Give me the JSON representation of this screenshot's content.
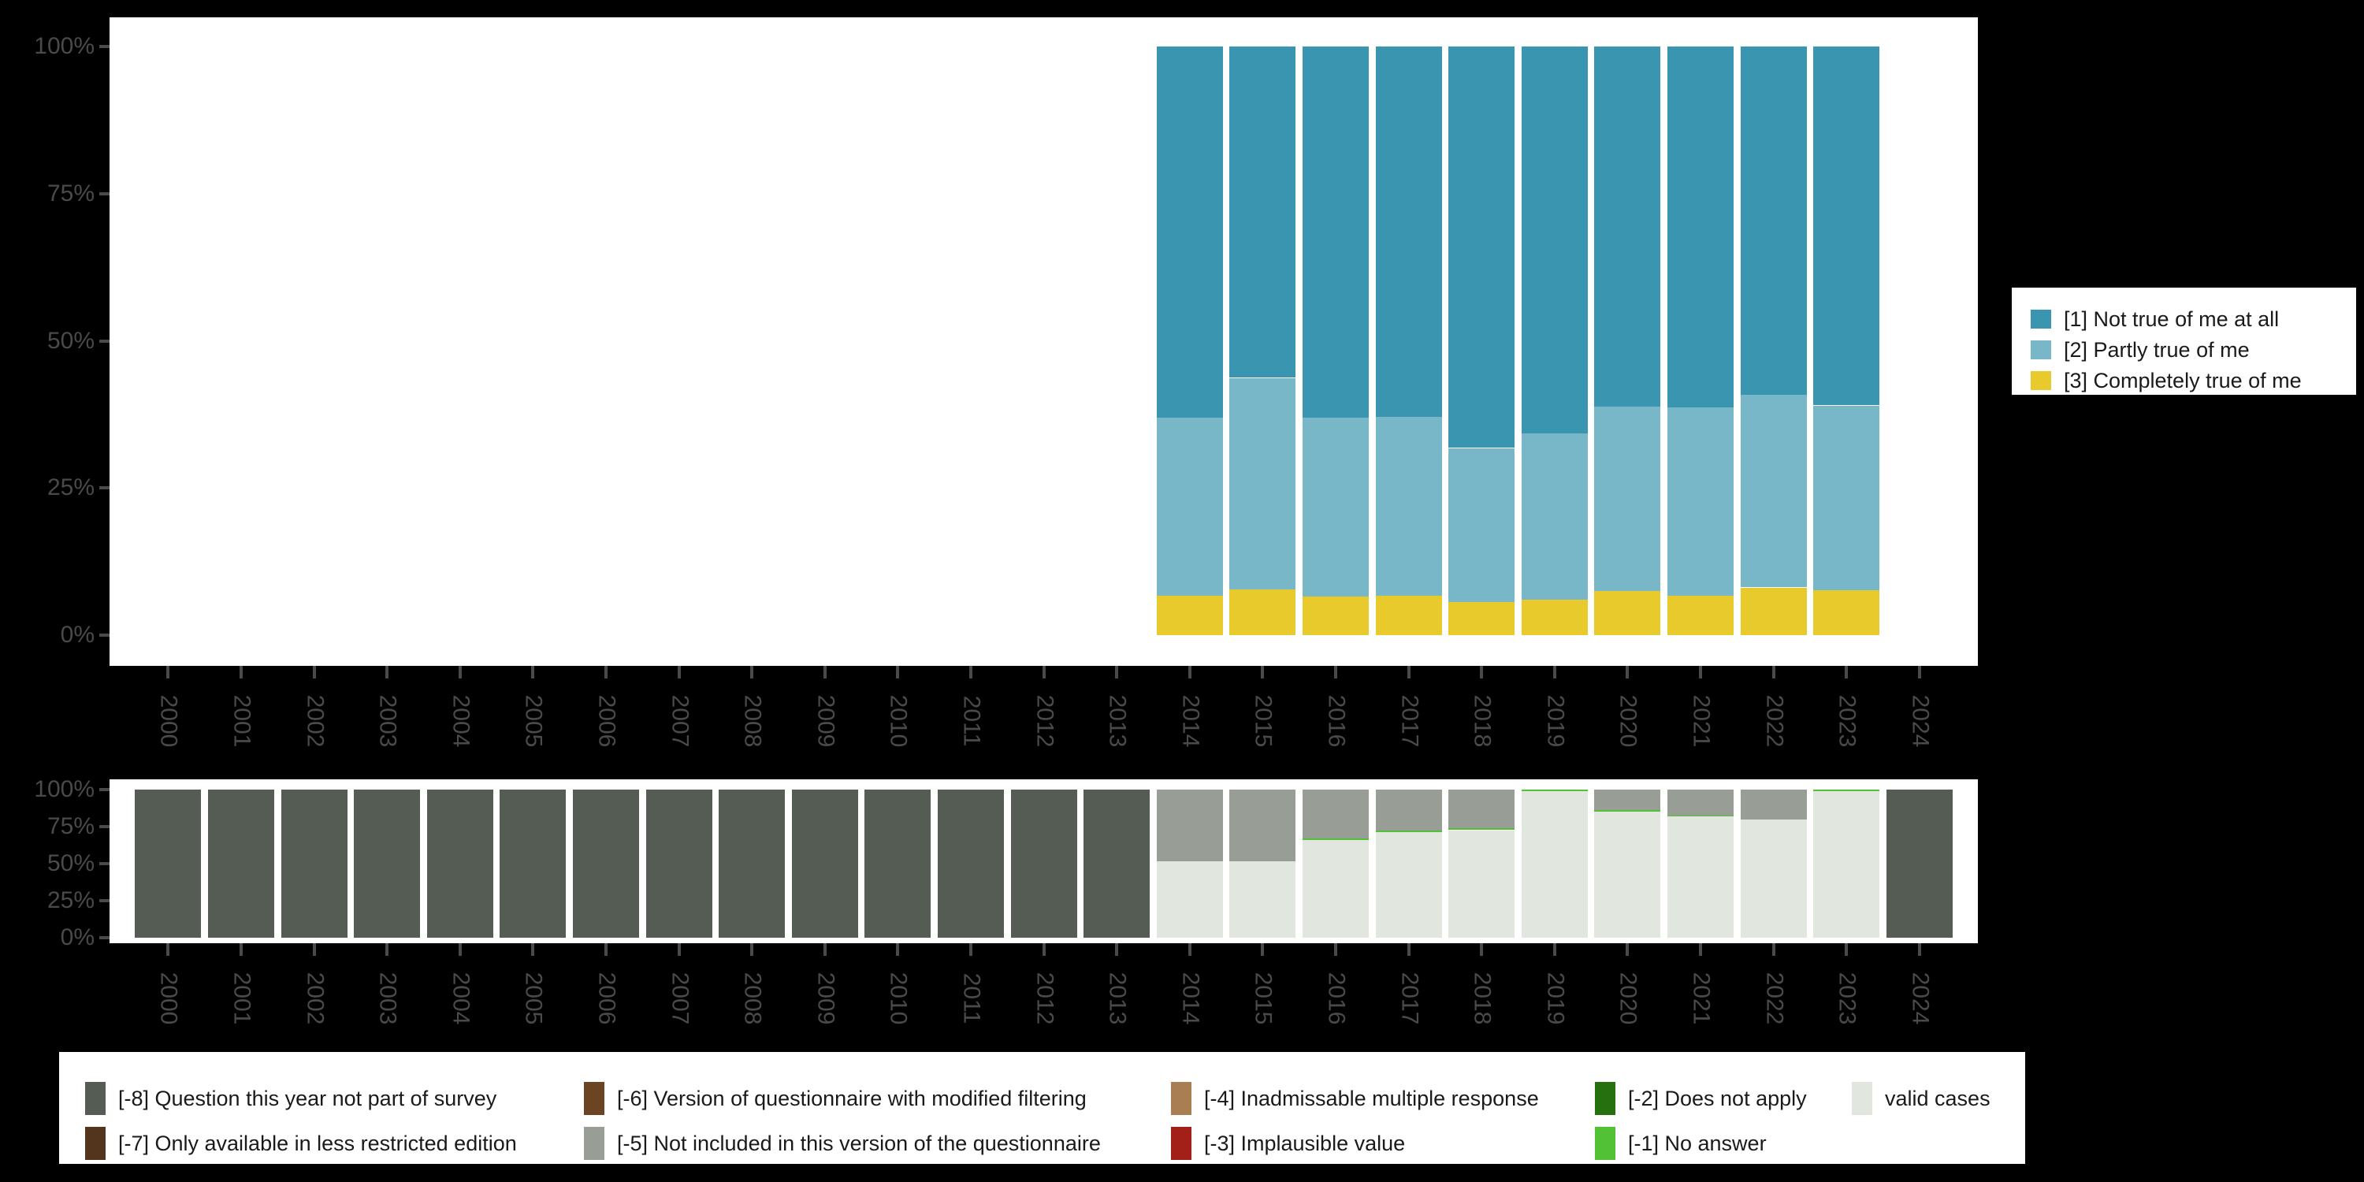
{
  "palette": {
    "background": "#000000",
    "panel": "#ffffff",
    "axis_text": "#4a4a4a",
    "legend_text": "#1a1a1a",
    "not_true": "#3a96b0",
    "partly_true": "#78b7c8",
    "completely_true": "#e9ca2c",
    "m8": "#545c53",
    "m7": "#53341d",
    "m6": "#6b4423",
    "m5": "#989e96",
    "m4": "#a87e52",
    "m3": "#a32019",
    "m2": "#26700f",
    "m1": "#53c135",
    "valid": "#e1e6df"
  },
  "axes": {
    "y_tick_labels": [
      "100%",
      "75%",
      "50%",
      "25%",
      "0%"
    ],
    "x_tick_labels": [
      "2000",
      "2001",
      "2002",
      "2003",
      "2004",
      "2005",
      "2006",
      "2007",
      "2008",
      "2009",
      "2010",
      "2011",
      "2012",
      "2013",
      "2014",
      "2015",
      "2016",
      "2017",
      "2018",
      "2019",
      "2020",
      "2021",
      "2022",
      "2023",
      "2024"
    ]
  },
  "chart_data": [
    {
      "type": "bar",
      "stacked": true,
      "title": "",
      "xlabel": "",
      "ylabel": "",
      "ylim": [
        0,
        100
      ],
      "grid": false,
      "legend_position": "right",
      "categories": [
        "2000",
        "2001",
        "2002",
        "2003",
        "2004",
        "2005",
        "2006",
        "2007",
        "2008",
        "2009",
        "2010",
        "2011",
        "2012",
        "2013",
        "2014",
        "2015",
        "2016",
        "2017",
        "2018",
        "2019",
        "2020",
        "2021",
        "2022",
        "2023",
        "2024"
      ],
      "series": [
        {
          "name": "[1] Not true of me at all",
          "color": "#3a96b0",
          "values": [
            null,
            null,
            null,
            null,
            null,
            null,
            null,
            null,
            null,
            null,
            null,
            null,
            null,
            null,
            63.1,
            56.3,
            63.1,
            62.9,
            68.2,
            65.7,
            61.2,
            61.3,
            59.2,
            61.0,
            null
          ]
        },
        {
          "name": "[2] Partly true of me",
          "color": "#78b7c8",
          "values": [
            null,
            null,
            null,
            null,
            null,
            null,
            null,
            null,
            null,
            null,
            null,
            null,
            null,
            null,
            30.2,
            35.9,
            30.4,
            30.4,
            26.1,
            28.2,
            31.3,
            32.0,
            32.7,
            31.3,
            null
          ]
        },
        {
          "name": "[3] Completely true of me",
          "color": "#e9ca2c",
          "values": [
            null,
            null,
            null,
            null,
            null,
            null,
            null,
            null,
            null,
            null,
            null,
            null,
            null,
            null,
            6.7,
            7.8,
            6.5,
            6.7,
            5.7,
            6.1,
            7.5,
            6.7,
            8.1,
            7.7,
            null
          ]
        }
      ]
    },
    {
      "type": "bar",
      "stacked": true,
      "title": "",
      "xlabel": "",
      "ylabel": "",
      "ylim": [
        0,
        100
      ],
      "grid": false,
      "legend_position": "bottom",
      "categories": [
        "2000",
        "2001",
        "2002",
        "2003",
        "2004",
        "2005",
        "2006",
        "2007",
        "2008",
        "2009",
        "2010",
        "2011",
        "2012",
        "2013",
        "2014",
        "2015",
        "2016",
        "2017",
        "2018",
        "2019",
        "2020",
        "2021",
        "2022",
        "2023",
        "2024"
      ],
      "series": [
        {
          "name": "[-8] Question this year not part of survey",
          "color": "#545c53",
          "values": [
            100,
            100,
            100,
            100,
            100,
            100,
            100,
            100,
            100,
            100,
            100,
            100,
            100,
            100,
            null,
            null,
            null,
            null,
            null,
            null,
            null,
            null,
            null,
            null,
            100
          ]
        },
        {
          "name": "[-5] Not included in this version of the questionnaire",
          "color": "#989e96",
          "values": [
            null,
            null,
            null,
            null,
            null,
            null,
            null,
            null,
            null,
            null,
            null,
            null,
            null,
            null,
            48.2,
            48.6,
            33.2,
            27.4,
            26.2,
            0,
            14.0,
            17.6,
            20.3,
            0,
            null
          ]
        },
        {
          "name": "[-1] No answer",
          "color": "#53c135",
          "values": [
            null,
            null,
            null,
            null,
            null,
            null,
            null,
            null,
            null,
            null,
            null,
            null,
            null,
            null,
            0,
            0,
            1.0,
            0.9,
            1.3,
            0.9,
            0.9,
            0.7,
            0,
            0.8,
            null
          ]
        },
        {
          "name": "valid cases",
          "color": "#e1e6df",
          "values": [
            null,
            null,
            null,
            null,
            null,
            null,
            null,
            null,
            null,
            null,
            null,
            null,
            null,
            null,
            51.8,
            51.4,
            65.8,
            71.7,
            72.5,
            99.1,
            85.1,
            81.7,
            79.7,
            99.2,
            null
          ]
        }
      ]
    }
  ],
  "legend_top": {
    "items": [
      {
        "label": "[1] Not true of me at all",
        "color": "#3a96b0"
      },
      {
        "label": "[2] Partly true of me",
        "color": "#78b7c8"
      },
      {
        "label": "[3] Completely true of me",
        "color": "#e9ca2c"
      }
    ]
  },
  "legend_bottom": {
    "items": [
      {
        "label": "[-8] Question this year not part of survey",
        "color": "#545c53",
        "col": 0,
        "row": 0
      },
      {
        "label": "[-7] Only available in less restricted edition",
        "color": "#53341d",
        "col": 0,
        "row": 1
      },
      {
        "label": "[-6] Version of questionnaire with modified filtering",
        "color": "#6b4423",
        "col": 1,
        "row": 0
      },
      {
        "label": "[-5] Not included in this version of the questionnaire",
        "color": "#989e96",
        "col": 1,
        "row": 1
      },
      {
        "label": "[-4] Inadmissable multiple response",
        "color": "#a87e52",
        "col": 2,
        "row": 0
      },
      {
        "label": "[-3] Implausible value",
        "color": "#a32019",
        "col": 2,
        "row": 1
      },
      {
        "label": "[-2] Does not apply",
        "color": "#26700f",
        "col": 3,
        "row": 0
      },
      {
        "label": "[-1] No answer",
        "color": "#53c135",
        "col": 3,
        "row": 1
      },
      {
        "label": "valid cases",
        "color": "#e1e6df",
        "col": 4,
        "row": 0
      }
    ]
  }
}
